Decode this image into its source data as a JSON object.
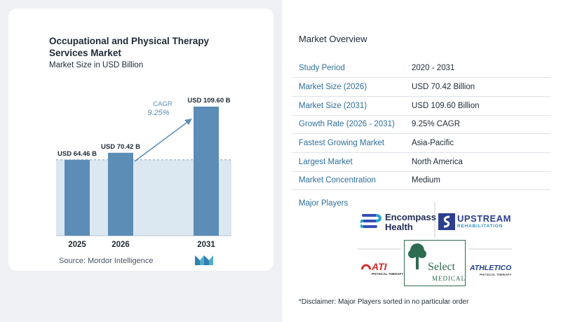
{
  "chart_card": {
    "title": "Occupational and Physical Therapy Services Market",
    "subtitle": "Market Size in USD Billion",
    "source": "Source:  Mordor Intelligence"
  },
  "chart_data": {
    "type": "bar",
    "title": "Occupational and Physical Therapy Services Market",
    "subtitle": "Market Size in USD Billion",
    "categories": [
      "2025",
      "2026",
      "2031"
    ],
    "values": [
      64.46,
      70.42,
      109.6
    ],
    "value_labels": [
      "USD 64.46 B",
      "USD 70.42 B",
      "USD 109.60 B"
    ],
    "annotation": {
      "label": "CAGR",
      "value": "9.25%"
    },
    "bar_color": "#5b8db6",
    "ylim": [
      0,
      115
    ]
  },
  "overview": {
    "title": "Market Overview",
    "rows": [
      {
        "key": "Study Period",
        "value": "2020 - 2031"
      },
      {
        "key": "Market Size (2026)",
        "value": "USD 70.42 Billion"
      },
      {
        "key": "Market Size (2031)",
        "value": "USD 109.60 Billion"
      },
      {
        "key": "Growth Rate (2026 - 2031)",
        "value": "9.25% CAGR"
      },
      {
        "key": "Fastest Growing Market",
        "value": "Asia-Pacific"
      },
      {
        "key": "Largest Market",
        "value": "North America"
      },
      {
        "key": "Market Concentration",
        "value": "Medium"
      }
    ],
    "major_players_title": "Major Players",
    "players": {
      "encompass_line1": "Encompass",
      "encompass_line2": "Health",
      "upstream_line1": "UPSTREAM",
      "upstream_line2": "REHABILITATION",
      "ati": "ATI",
      "ati_sub": "PHYSICAL THERAPY",
      "select_line1": "Select",
      "select_line2": "MEDICAL",
      "athletico": "ATHLETICO",
      "athletico_sub": "PHYSICAL THERAPY"
    },
    "disclaimer": "*Disclaimer: Major Players sorted in no particular order"
  },
  "colors": {
    "accent": "#2f6f99",
    "bar": "#5b8db6",
    "bar_light": "#dbe7f1"
  }
}
